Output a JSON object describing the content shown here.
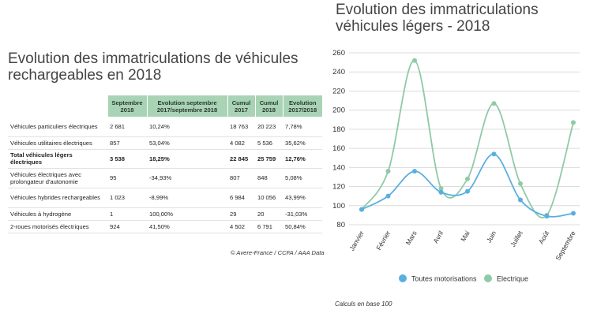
{
  "left": {
    "title_line1": "Evolution des immatriculations de véhicules",
    "title_line2": "rechargeables en 2018",
    "headers": [
      "",
      "Septembre 2018",
      "Evolution septembre 2017/septembre 2018",
      "Cumul 2017",
      "Cumul 2018",
      "Evolution 2017/2018"
    ],
    "rows": [
      {
        "label": "Véhicules particuliers électriques",
        "cells": [
          "2 681",
          "10,24%",
          "18 763",
          "20 223",
          "7,78%"
        ],
        "bold": false
      },
      {
        "label": "Véhicules utilitaires électriques",
        "cells": [
          "857",
          "53,04%",
          "4 082",
          "5 536",
          "35,62%"
        ],
        "bold": false
      },
      {
        "label": "Total véhicules légers électriques",
        "cells": [
          "3 538",
          "18,25%",
          "22 845",
          "25 759",
          "12,76%"
        ],
        "bold": true
      },
      {
        "label": "Véhicules électriques avec prolongateur d'autonomie",
        "cells": [
          "95",
          "-34,93%",
          "807",
          "848",
          "5,08%"
        ],
        "bold": false
      },
      {
        "label": "Véhicules hybrides rechargeables",
        "cells": [
          "1 023",
          "-8,99%",
          "6 984",
          "10 056",
          "43,99%"
        ],
        "bold": false
      },
      {
        "label": "Véhicules à hydrogène",
        "cells": [
          "1",
          "100,00%",
          "29",
          "20",
          "-31,03%"
        ],
        "bold": false
      },
      {
        "label": "2-roues motorisés électriques",
        "cells": [
          "924",
          "41,50%",
          "4 502",
          "6 791",
          "50,84%"
        ],
        "bold": false
      }
    ],
    "source": "© Avere-France / CCFA / AAA Data"
  },
  "right": {
    "title_line1": "Evolution des immatriculations",
    "title_line2": "véhicules légers - 2018",
    "note": "Calculs en base 100"
  },
  "chart_data": {
    "type": "line",
    "categories": [
      "Janvier",
      "Février",
      "Mars",
      "Avril",
      "Mai",
      "Juin",
      "Juillet",
      "Août",
      "Septembre"
    ],
    "ylim": [
      80,
      260
    ],
    "yticks": [
      80,
      100,
      120,
      140,
      160,
      180,
      200,
      220,
      240,
      260
    ],
    "grid": "horizontal",
    "legend_position": "bottom",
    "series": [
      {
        "name": "Toutes motorisations",
        "color": "#5aafe0",
        "values": [
          96,
          110,
          136,
          114,
          115,
          154,
          106,
          89,
          92
        ]
      },
      {
        "name": "Electrique",
        "color": "#8fcaa7",
        "values": [
          96,
          136,
          252,
          118,
          128,
          207,
          123,
          90,
          187
        ]
      }
    ]
  }
}
